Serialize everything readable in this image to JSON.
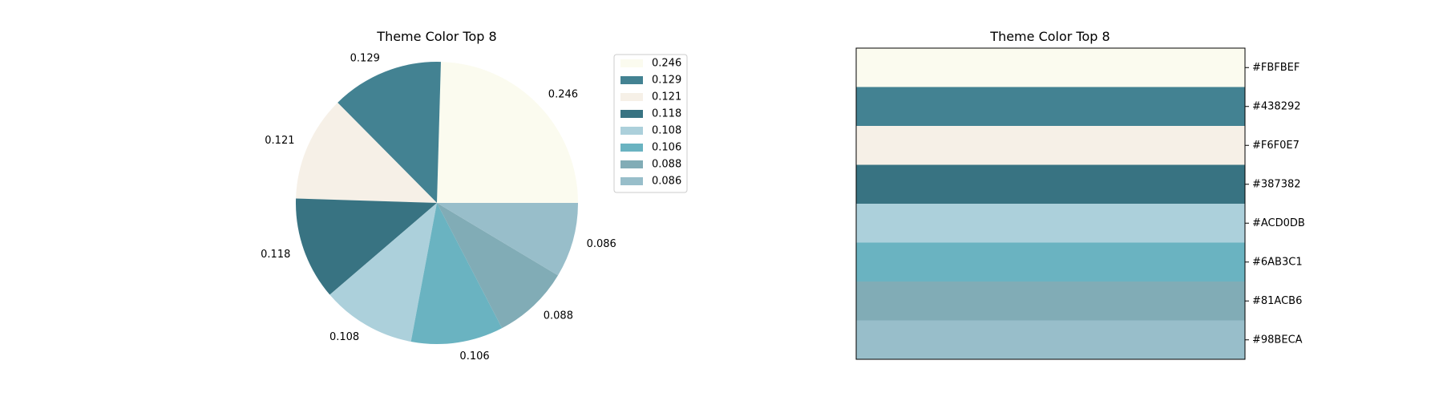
{
  "chart_data": [
    {
      "type": "pie",
      "title": "Theme Color Top 8",
      "categories": [
        "0.246",
        "0.129",
        "0.121",
        "0.118",
        "0.108",
        "0.106",
        "0.088",
        "0.086"
      ],
      "values": [
        0.246,
        0.129,
        0.121,
        0.118,
        0.108,
        0.106,
        0.088,
        0.086
      ],
      "colors": [
        "#FBFBEF",
        "#438292",
        "#F6F0E7",
        "#387382",
        "#ACD0DB",
        "#6AB3C1",
        "#81ACB6",
        "#98BECA"
      ],
      "legend": {
        "placement": "upper-right-outside",
        "entries": [
          "0.246",
          "0.129",
          "0.121",
          "0.118",
          "0.108",
          "0.106",
          "0.088",
          "0.086"
        ]
      },
      "start_angle_deg": 0,
      "direction": "counterclockwise"
    },
    {
      "type": "bar",
      "orientation": "horizontal-stacked-swatches",
      "title": "Theme Color Top 8",
      "categories": [
        "#FBFBEF",
        "#438292",
        "#F6F0E7",
        "#387382",
        "#ACD0DB",
        "#6AB3C1",
        "#81ACB6",
        "#98BECA"
      ],
      "colors": [
        "#FBFBEF",
        "#438292",
        "#F6F0E7",
        "#387382",
        "#ACD0DB",
        "#6AB3C1",
        "#81ACB6",
        "#98BECA"
      ],
      "tick_side": "right",
      "xticks": "none"
    }
  ]
}
